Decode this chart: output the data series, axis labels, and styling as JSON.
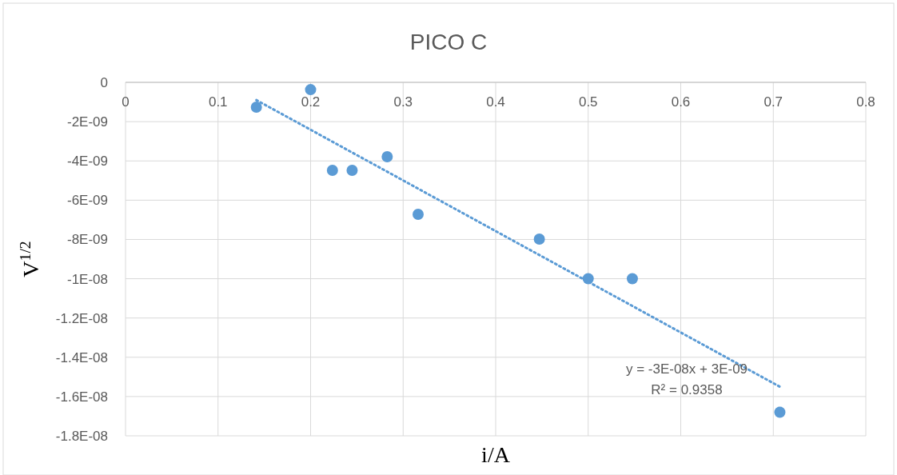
{
  "chart_data": {
    "type": "scatter",
    "title": "PICO C",
    "xlabel": "i/A",
    "ylabel": "V$^{1/2}$",
    "xlim": [
      0,
      0.8
    ],
    "xticks": [
      0,
      0.1,
      0.2,
      0.3,
      0.4,
      0.5,
      0.6,
      0.7,
      0.8
    ],
    "ylim": [
      -1.8e-08,
      0
    ],
    "yticks": [
      {
        "value": 0,
        "label": "0"
      },
      {
        "value": -2e-09,
        "label": "-2E-09"
      },
      {
        "value": -4e-09,
        "label": "-4E-09"
      },
      {
        "value": -6e-09,
        "label": "-6E-09"
      },
      {
        "value": -8e-09,
        "label": "-8E-09"
      },
      {
        "value": -1e-08,
        "label": "-1E-08"
      },
      {
        "value": -1.2e-08,
        "label": "-1.2E-08"
      },
      {
        "value": -1.4e-08,
        "label": "-1.4E-08"
      },
      {
        "value": -1.6e-08,
        "label": "-1.6E-08"
      },
      {
        "value": -1.8e-08,
        "label": "-1.8E-08"
      }
    ],
    "grid": true,
    "series": [
      {
        "color": "#5b9bd5",
        "marker": "circle",
        "x": [
          0.1414,
          0.2,
          0.2236,
          0.2449,
          0.2828,
          0.3162,
          0.4472,
          0.5,
          0.5477,
          0.7071
        ],
        "values": [
          -1.26e-09,
          -3.7e-10,
          -4.48e-09,
          -4.48e-09,
          -3.79e-09,
          -6.72e-09,
          -7.98e-09,
          -1e-08,
          -1e-08,
          -1.68e-08
        ]
      },
      {
        "type": "line",
        "color": "#5b9bd5",
        "line_style": "dotted",
        "x": [
          0.1414,
          0.7071
        ],
        "values": [
          -9e-10,
          -1.55e-08
        ]
      }
    ],
    "annotations": [
      "y = -3E-08x + 3E-09",
      "R² = 0.9358"
    ]
  }
}
